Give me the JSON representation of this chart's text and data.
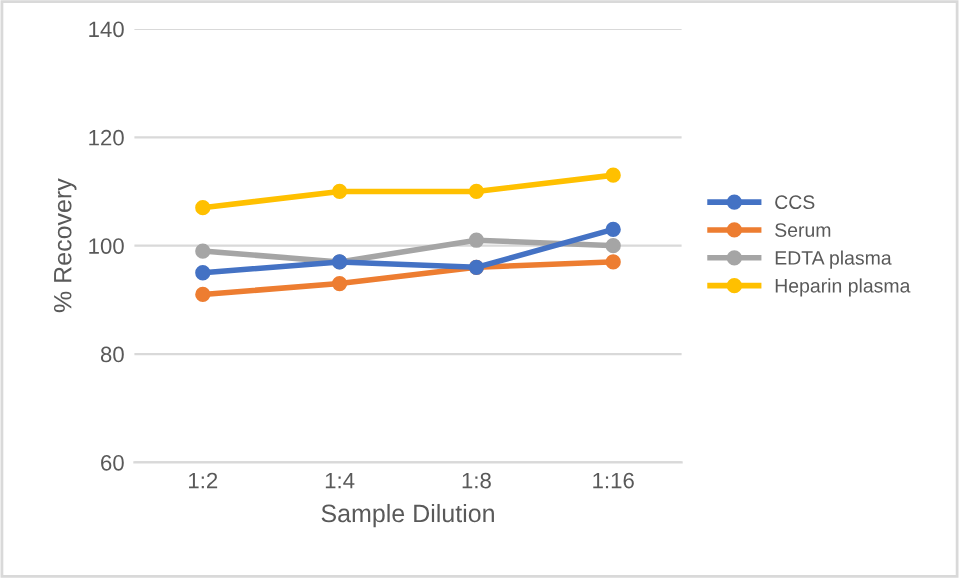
{
  "chart_data": {
    "type": "line",
    "xlabel": "Sample Dilution",
    "ylabel": "% Recovery",
    "categories": [
      "1:2",
      "1:4",
      "1:8",
      "1:16"
    ],
    "series": [
      {
        "name": "CCS",
        "color": "#4472c4",
        "values": [
          95,
          97,
          96,
          103
        ]
      },
      {
        "name": "Serum",
        "color": "#ed7d31",
        "values": [
          91,
          93,
          96,
          97
        ]
      },
      {
        "name": "EDTA plasma",
        "color": "#a5a5a5",
        "values": [
          99,
          97,
          101,
          100
        ]
      },
      {
        "name": "Heparin plasma",
        "color": "#ffc000",
        "values": [
          107,
          110,
          110,
          113
        ]
      }
    ],
    "ylim": [
      60,
      140
    ],
    "yticks": [
      60,
      80,
      100,
      120,
      140
    ],
    "grid": "y",
    "legend": "right",
    "marker": "circle",
    "line_style": "solid"
  }
}
